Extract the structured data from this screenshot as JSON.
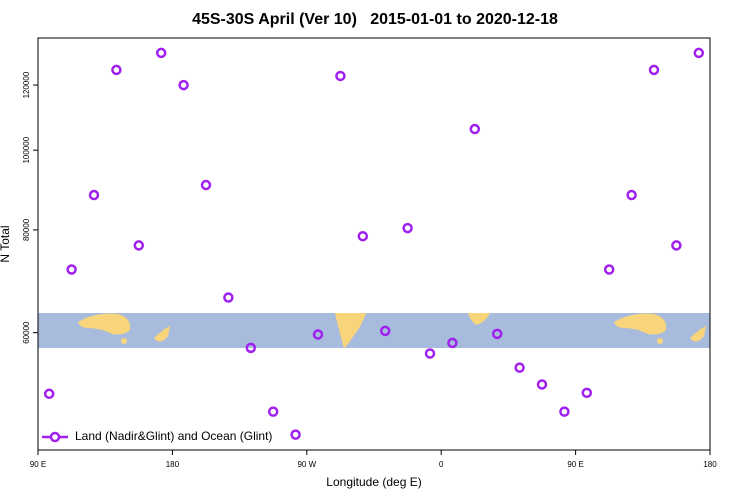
{
  "chart_data": {
    "type": "scatter",
    "title": "45S-30S April (Ver 10)   2015-01-01 to 2020-12-18",
    "x_label": "Longitude (deg E)",
    "y_label": "N Total",
    "series": [
      {
        "name": "Land (Nadir&Glint) and Ocean (Glint)",
        "color": "#a020f0",
        "x": [
          97.5,
          112.5,
          127.5,
          142.5,
          157.5,
          172.5,
          187.5,
          202.5,
          217.5,
          232.5,
          247.5,
          262.5,
          277.5,
          292.5,
          307.5,
          322.5,
          337.5,
          352.5,
          367.5,
          382.5,
          397.5,
          412.5,
          427.5,
          442.5,
          457.5,
          472.5,
          487.5,
          502.5,
          517.5,
          532.5
        ],
        "values": [
          50560,
          71600,
          88200,
          125200,
          76600,
          131300,
          120000,
          90700,
          66200,
          57500,
          48100,
          45100,
          59700,
          123100,
          78600,
          60300,
          80400,
          56600,
          58300,
          106100,
          59800,
          54400,
          51900,
          48100,
          50700,
          71600,
          88200,
          125200,
          76600,
          131300
        ]
      }
    ],
    "xlim": [
      90,
      540
    ],
    "xticks": [
      {
        "value": 90,
        "label": "90 E"
      },
      180,
      {
        "value": 270,
        "label": "90 W"
      },
      {
        "value": 360,
        "label": "0"
      },
      {
        "value": 450,
        "label": "90 E"
      },
      {
        "value": 540,
        "label": "180"
      }
    ],
    "ylim": [
      43200,
      136900
    ],
    "yticks": [
      60000,
      80000,
      100000,
      120000
    ],
    "log_y": true,
    "legend": "lower left"
  }
}
